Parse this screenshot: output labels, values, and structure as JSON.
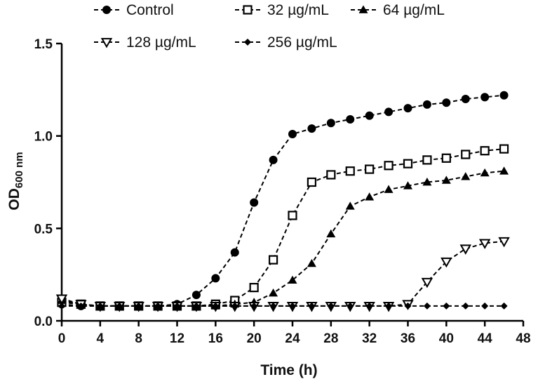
{
  "chart_data": {
    "type": "line",
    "title": "",
    "xlabel": "Time (h)",
    "ylabel_main": "OD",
    "ylabel_sub": "600 nm",
    "xlim": [
      0,
      48
    ],
    "ylim": [
      0,
      1.5
    ],
    "xticks": [
      "0",
      "4",
      "8",
      "12",
      "16",
      "20",
      "24",
      "28",
      "32",
      "36",
      "40",
      "44",
      "48"
    ],
    "yticks": [
      "0.0",
      "0.5",
      "1.0",
      "1.5"
    ],
    "x": [
      0,
      2,
      4,
      6,
      8,
      10,
      12,
      14,
      16,
      18,
      20,
      22,
      24,
      26,
      28,
      30,
      32,
      34,
      36,
      38,
      40,
      42,
      44,
      46
    ],
    "series": [
      {
        "name": "Control",
        "marker": "circle",
        "values": [
          0.09,
          0.08,
          0.08,
          0.08,
          0.08,
          0.08,
          0.09,
          0.14,
          0.23,
          0.37,
          0.64,
          0.87,
          1.01,
          1.04,
          1.07,
          1.09,
          1.11,
          1.13,
          1.15,
          1.17,
          1.18,
          1.2,
          1.21,
          1.22
        ]
      },
      {
        "name": "32 µg/mL",
        "marker": "square-open",
        "values": [
          0.1,
          0.09,
          0.08,
          0.08,
          0.08,
          0.08,
          0.08,
          0.08,
          0.09,
          0.11,
          0.18,
          0.33,
          0.57,
          0.75,
          0.79,
          0.81,
          0.82,
          0.84,
          0.85,
          0.87,
          0.88,
          0.9,
          0.92,
          0.93
        ]
      },
      {
        "name": "64 µg/mL",
        "marker": "triangle-up",
        "values": [
          0.11,
          0.09,
          0.08,
          0.08,
          0.08,
          0.08,
          0.08,
          0.08,
          0.08,
          0.09,
          0.1,
          0.15,
          0.22,
          0.31,
          0.47,
          0.62,
          0.67,
          0.71,
          0.73,
          0.75,
          0.76,
          0.78,
          0.8,
          0.81
        ]
      },
      {
        "name": "128 µg/mL",
        "marker": "triangle-down-open",
        "values": [
          0.12,
          0.09,
          0.08,
          0.08,
          0.08,
          0.08,
          0.08,
          0.08,
          0.08,
          0.08,
          0.08,
          0.08,
          0.08,
          0.08,
          0.08,
          0.08,
          0.08,
          0.08,
          0.09,
          0.21,
          0.32,
          0.39,
          0.42,
          0.43
        ]
      },
      {
        "name": "256 µg/mL",
        "marker": "diamond",
        "values": [
          0.08,
          0.08,
          0.08,
          0.08,
          0.08,
          0.08,
          0.08,
          0.08,
          0.08,
          0.08,
          0.08,
          0.08,
          0.08,
          0.08,
          0.08,
          0.08,
          0.08,
          0.08,
          0.08,
          0.08,
          0.08,
          0.08,
          0.08,
          0.08
        ]
      }
    ],
    "legend_position": "top",
    "grid": false
  }
}
